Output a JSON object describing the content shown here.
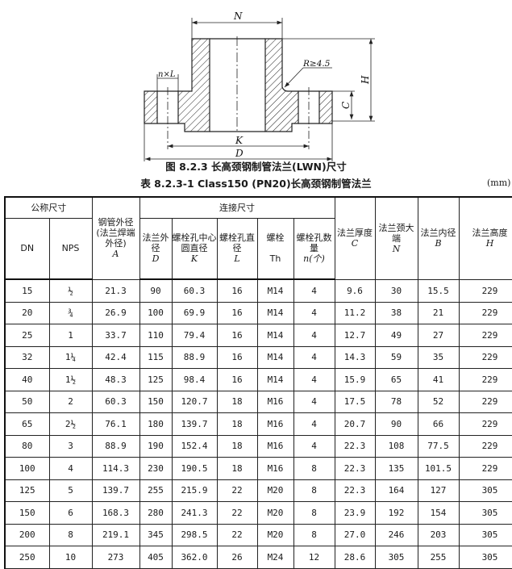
{
  "figure": {
    "labels": {
      "N": "N",
      "H": "H",
      "C": "C",
      "K": "K",
      "D": "D",
      "nxL": "n×L",
      "R": "R≥4.5"
    },
    "caption": "图 8.2.3   长高颈钢制管法兰(LWN)尺寸"
  },
  "table": {
    "caption": "表 8.2.3-1   Class150 (PN20)长高颈钢制管法兰",
    "unit": "(mm)",
    "group_headers": {
      "nominal": "公称尺寸",
      "connection": "连接尺寸"
    },
    "headers": {
      "dn": "DN",
      "nps": "NPS",
      "a": {
        "text": "钢管外径 (法兰焊端外径)",
        "sym": "A"
      },
      "d": {
        "text": "法兰外径",
        "sym": "D"
      },
      "k": {
        "text": "螺栓孔中心圆直径",
        "sym": "K"
      },
      "l": {
        "text": "螺栓孔直径",
        "sym": "L"
      },
      "th": {
        "text": "螺栓",
        "sym": "Th"
      },
      "n": {
        "text": "螺栓孔数量",
        "sym": "n(个)"
      },
      "c": {
        "text": "法兰厚度",
        "sym": "C"
      },
      "nn": {
        "text": "法兰颈大端",
        "sym": "N"
      },
      "b": {
        "text": "法兰内径",
        "sym": "B"
      },
      "h": {
        "text": "法兰高度",
        "sym": "H"
      }
    },
    "rows": [
      [
        "15",
        "½",
        "21.3",
        "90",
        "60.3",
        "16",
        "M14",
        "4",
        "9.6",
        "30",
        "15.5",
        "229"
      ],
      [
        "20",
        "¾",
        "26.9",
        "100",
        "69.9",
        "16",
        "M14",
        "4",
        "11.2",
        "38",
        "21",
        "229"
      ],
      [
        "25",
        "1",
        "33.7",
        "110",
        "79.4",
        "16",
        "M14",
        "4",
        "12.7",
        "49",
        "27",
        "229"
      ],
      [
        "32",
        "1¼",
        "42.4",
        "115",
        "88.9",
        "16",
        "M14",
        "4",
        "14.3",
        "59",
        "35",
        "229"
      ],
      [
        "40",
        "1½",
        "48.3",
        "125",
        "98.4",
        "16",
        "M14",
        "4",
        "15.9",
        "65",
        "41",
        "229"
      ],
      [
        "50",
        "2",
        "60.3",
        "150",
        "120.7",
        "18",
        "M16",
        "4",
        "17.5",
        "78",
        "52",
        "229"
      ],
      [
        "65",
        "2½",
        "76.1",
        "180",
        "139.7",
        "18",
        "M16",
        "4",
        "20.7",
        "90",
        "66",
        "229"
      ],
      [
        "80",
        "3",
        "88.9",
        "190",
        "152.4",
        "18",
        "M16",
        "4",
        "22.3",
        "108",
        "77.5",
        "229"
      ],
      [
        "100",
        "4",
        "114.3",
        "230",
        "190.5",
        "18",
        "M16",
        "8",
        "22.3",
        "135",
        "101.5",
        "229"
      ],
      [
        "125",
        "5",
        "139.7",
        "255",
        "215.9",
        "22",
        "M20",
        "8",
        "22.3",
        "164",
        "127",
        "305"
      ],
      [
        "150",
        "6",
        "168.3",
        "280",
        "241.3",
        "22",
        "M20",
        "8",
        "23.9",
        "192",
        "154",
        "305"
      ],
      [
        "200",
        "8",
        "219.1",
        "345",
        "298.5",
        "22",
        "M20",
        "8",
        "27.0",
        "246",
        "203",
        "305"
      ],
      [
        "250",
        "10",
        "273",
        "405",
        "362.0",
        "26",
        "M24",
        "12",
        "28.6",
        "305",
        "255",
        "305"
      ]
    ]
  }
}
